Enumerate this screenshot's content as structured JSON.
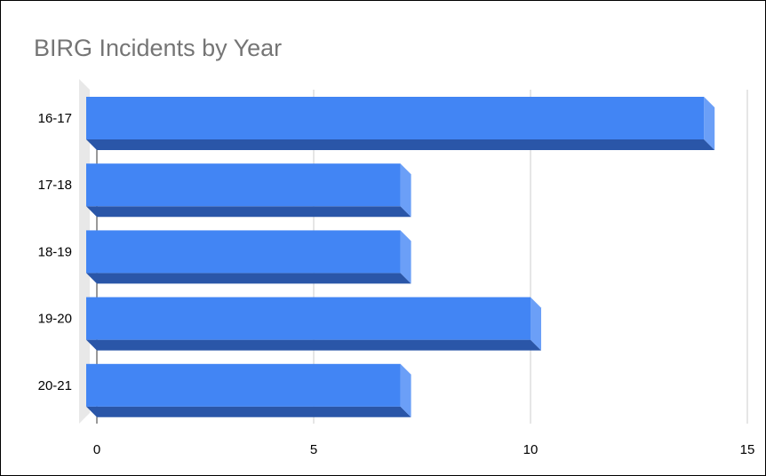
{
  "chart_data": {
    "type": "bar",
    "orientation": "horizontal",
    "style": "3d",
    "title": "BIRG Incidents by Year",
    "xlabel": "",
    "ylabel": "",
    "categories": [
      "16-17",
      "17-18",
      "18-19",
      "19-20",
      "20-21"
    ],
    "values": [
      14,
      7,
      7,
      10,
      7
    ],
    "xlim": [
      0,
      15
    ],
    "xticks": [
      0,
      5,
      10,
      15
    ],
    "grid": "vertical",
    "legend": "none",
    "colors": {
      "bar_face": "#4285f4",
      "bar_bottom": "#2a56a8",
      "bar_end": "#6b9ff7",
      "gridline": "#cccccc",
      "wall": "#e8e8e8",
      "title": "#757575"
    }
  }
}
